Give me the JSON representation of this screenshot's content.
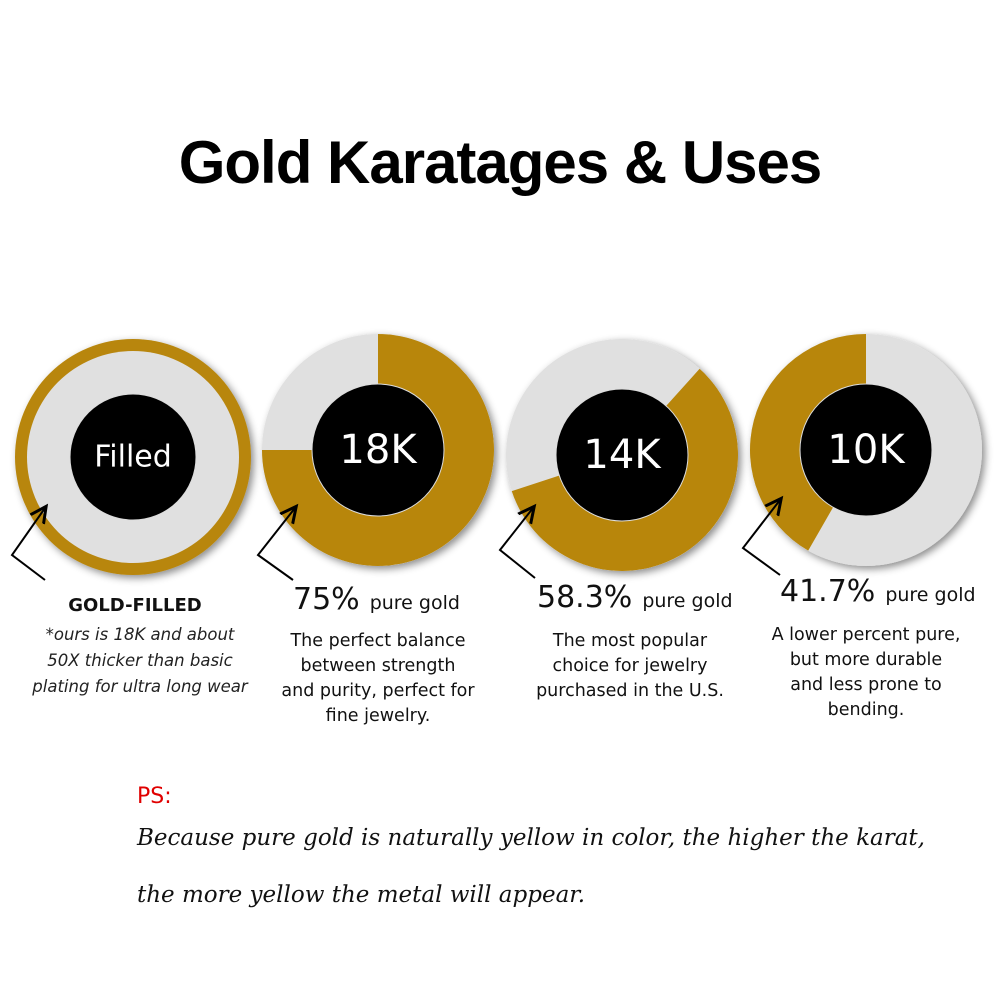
{
  "title": "Gold Karatages & Uses",
  "colors": {
    "gold": "#b8860b",
    "grey": "#e0e0e0",
    "center": "#000000",
    "ps": "#e00000"
  },
  "chart_data": {
    "type": "pie",
    "variant": "donut",
    "title": "Gold Karatages & Uses",
    "charts": [
      {
        "center_label": "Filled",
        "gold_fraction": null,
        "style": "outer gold rim"
      },
      {
        "center_label": "18K",
        "gold_percent": 75,
        "pct_text": "75%",
        "pct_label": "pure gold"
      },
      {
        "center_label": "14K",
        "gold_percent": 58.3,
        "pct_text": "58.3%",
        "pct_label": "pure gold"
      },
      {
        "center_label": "10K",
        "gold_percent": 41.7,
        "pct_text": "41.7%",
        "pct_label": "pure gold"
      }
    ]
  },
  "gold_filled": {
    "heading": "GOLD-FILLED",
    "note": [
      "*ours is 18K and about",
      "50X thicker than basic",
      "plating for ultra long wear"
    ]
  },
  "descriptions": {
    "k18": [
      "The perfect balance",
      "between strength",
      "and purity, perfect for",
      "fine jewelry."
    ],
    "k14": [
      "The most popular",
      "choice for jewelry",
      "purchased in the U.S."
    ],
    "k10": [
      "A lower percent pure,",
      "but more durable",
      "and less prone to",
      "bending."
    ]
  },
  "ps": {
    "label": "PS:",
    "lines": [
      "Because pure gold is naturally yellow in color, the higher the karat,",
      "the more yellow the metal will appear."
    ]
  }
}
